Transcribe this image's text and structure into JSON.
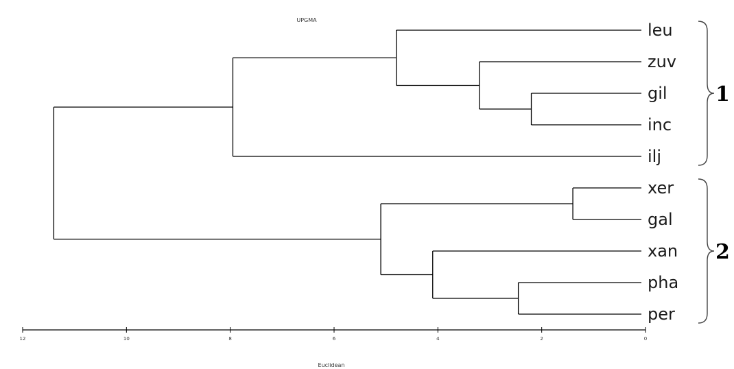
{
  "title": "UPGMA",
  "axis": {
    "label": "Euclidean",
    "ticks": [
      "12",
      "10",
      "8",
      "6",
      "4",
      "2",
      "0"
    ],
    "max": 12
  },
  "leaves": [
    "leu",
    "zuv",
    "gil",
    "inc",
    "ilj",
    "xer",
    "gal",
    "xan",
    "pha",
    "per"
  ],
  "merges": [
    {
      "id": "gil_inc",
      "children": [
        "gil",
        "inc"
      ],
      "height": 2.2
    },
    {
      "id": "zuv_gil_inc",
      "children": [
        "zuv",
        "gil_inc"
      ],
      "height": 3.2
    },
    {
      "id": "leu_zuv_gil_inc",
      "children": [
        "leu",
        "zuv_gil_inc"
      ],
      "height": 4.8
    },
    {
      "id": "cluster1",
      "children": [
        "leu_zuv_gil_inc",
        "ilj"
      ],
      "height": 7.95
    },
    {
      "id": "xer_gal",
      "children": [
        "xer",
        "gal"
      ],
      "height": 1.4
    },
    {
      "id": "pha_per",
      "children": [
        "pha",
        "per"
      ],
      "height": 2.45
    },
    {
      "id": "xan_pha_per",
      "children": [
        "xan",
        "pha_per"
      ],
      "height": 4.1
    },
    {
      "id": "cluster2",
      "children": [
        "xer_gal",
        "xan_pha_per"
      ],
      "height": 5.1
    },
    {
      "id": "root",
      "children": [
        "cluster1",
        "cluster2"
      ],
      "height": 11.4
    }
  ],
  "groups": [
    {
      "label": "1",
      "leaves": [
        "leu",
        "zuv",
        "gil",
        "inc",
        "ilj"
      ]
    },
    {
      "label": "2",
      "leaves": [
        "xer",
        "gal",
        "xan",
        "pha",
        "per"
      ]
    }
  ]
}
